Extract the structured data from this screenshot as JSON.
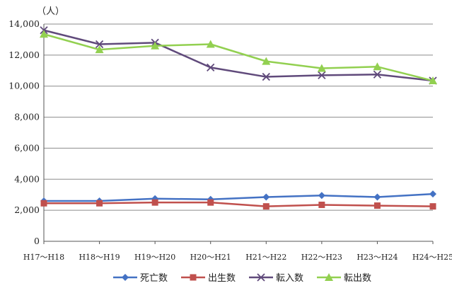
{
  "chart_data": {
    "type": "line",
    "unit_label": "（人）",
    "categories": [
      "H17～H18",
      "H18～H19",
      "H19～H20",
      "H20～H21",
      "H21～H22",
      "H22～H23",
      "H23～H24",
      "H24～H25"
    ],
    "ylim": [
      0,
      14000
    ],
    "yticks": [
      0,
      2000,
      4000,
      6000,
      8000,
      10000,
      12000,
      14000
    ],
    "ytick_labels": [
      "0",
      "2,000",
      "4,000",
      "6,000",
      "8,000",
      "10,000",
      "12,000",
      "14,000"
    ],
    "grid": true,
    "legend_position": "bottom",
    "series": [
      {
        "name": "死亡数",
        "color": "#4472C4",
        "marker": "diamond",
        "values": [
          2600,
          2600,
          2750,
          2700,
          2850,
          2950,
          2850,
          3050
        ]
      },
      {
        "name": "出生数",
        "color": "#C0504D",
        "marker": "square",
        "values": [
          2450,
          2450,
          2500,
          2500,
          2250,
          2350,
          2300,
          2250
        ]
      },
      {
        "name": "転入数",
        "color": "#604A7B",
        "marker": "x",
        "values": [
          13600,
          12700,
          12800,
          11200,
          10600,
          10700,
          10750,
          10350
        ]
      },
      {
        "name": "転出数",
        "color": "#92D050",
        "marker": "triangle",
        "values": [
          13350,
          12350,
          12600,
          12700,
          11600,
          11150,
          11250,
          10350
        ]
      }
    ]
  }
}
